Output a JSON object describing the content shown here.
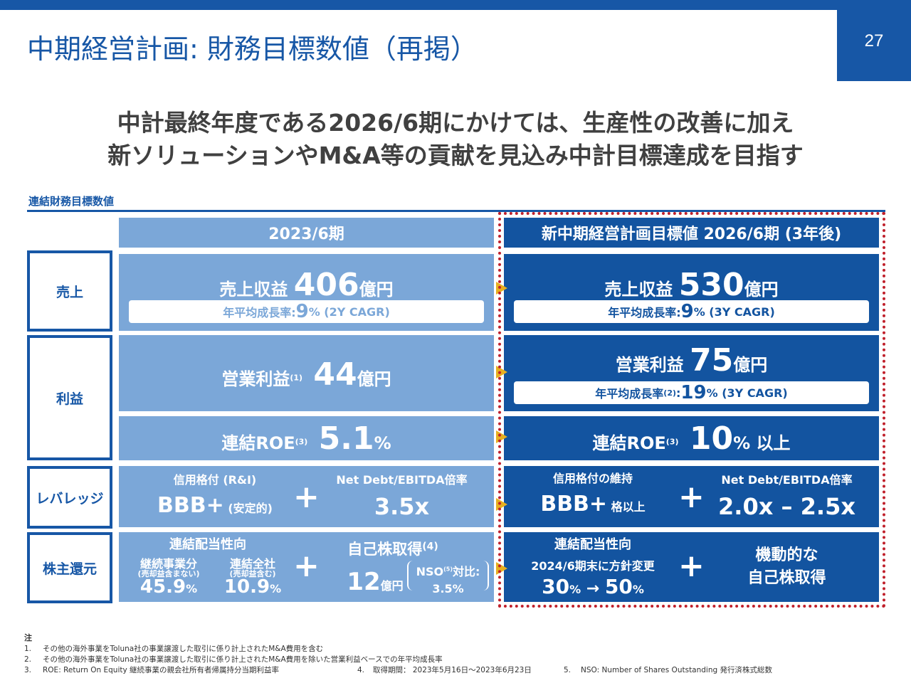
{
  "page": {
    "title": "中期経営計画: 財務目標数値（再掲）",
    "page_number": "27"
  },
  "headline": {
    "line1": "中計最終年度である2026/6期にかけては、生産性の改善に加え",
    "line2": "新ソリューションやM&A等の貢献を見込み中計目標達成を目指す"
  },
  "section_label": "連結財務目標数値",
  "columns": {
    "current": "2023/6期",
    "target": "新中期経営計画目標値 2026/6期 (3年後)"
  },
  "rows": {
    "sales": "売上",
    "profit": "利益",
    "leverage": "レバレッジ",
    "shareholder": "株主還元"
  },
  "current": {
    "sales_label": "売上収益 ",
    "sales_value": "406",
    "sales_unit": "億円",
    "sales_cagr_label": "年平均成長率: ",
    "sales_cagr_value": "9",
    "sales_cagr_unit": "% (2Y CAGR)",
    "op_label": "営業利益",
    "op_note": "(1)",
    "op_value": " 44",
    "op_unit": "億円",
    "roe_label": "連結ROE",
    "roe_note": "(3)",
    "roe_value": " 5.1",
    "roe_unit": "%",
    "rating_label": "信用格付 (R&I)",
    "rating_value": "BBB+",
    "rating_sub": " (安定的)",
    "nd_label": "Net Debt/EBITDA倍率",
    "nd_value": "3.5x",
    "payout_label": "連結配当性向",
    "cont_label": "継続事業分",
    "cont_sub": "(売却益含まない)",
    "cont_value": "45.9",
    "cont_unit": "%",
    "total_label": "連結全社",
    "total_sub": "(売却益含む)",
    "total_value": "10.9",
    "total_unit": "%",
    "buyback_label": "自己株取得",
    "buyback_note": "(4)",
    "buyback_value": "12",
    "buyback_unit": "億円",
    "nso_label": "NSO",
    "nso_note": "(5)",
    "nso_suffix": "対比:",
    "nso_value": "3.5%"
  },
  "target": {
    "sales_label": "売上収益 ",
    "sales_value": "530",
    "sales_unit": "億円",
    "sales_cagr_label": "年平均成長率: ",
    "sales_cagr_value": "9",
    "sales_cagr_unit": "% (3Y CAGR)",
    "op_label": "営業利益 ",
    "op_value": "75",
    "op_unit": "億円",
    "op_cagr_label": "年平均成長率",
    "op_cagr_note": "(2)",
    "op_cagr_sep": " : ",
    "op_cagr_value": "19",
    "op_cagr_unit": "% (3Y CAGR)",
    "roe_label": "連結ROE",
    "roe_note": "(3)",
    "roe_value": " 10",
    "roe_unit": "% 以上",
    "rating_label": "信用格付の維持",
    "rating_value": "BBB+",
    "rating_sub": " 格以上",
    "nd_label": "Net Debt/EBITDA倍率",
    "nd_value": "2.0x – 2.5x",
    "payout_label": "連結配当性向",
    "payout_sub": "2024/6期末に方針変更",
    "payout_from": "30",
    "payout_from_unit": "%",
    "payout_arrow": " → ",
    "payout_to": "50",
    "payout_to_unit": "%",
    "buyback_line1": "機動的な",
    "buyback_line2": "自己株取得"
  },
  "plus_sign": "+",
  "notes": {
    "heading": "注",
    "n1_num": "1.",
    "n1": "その他の海外事業をToluna社の事業譲渡した取引に係り計上されたM&A費用を含む",
    "n2_num": "2.",
    "n2": "その他の海外事業をToluna社の事業譲渡した取引に係り計上されたM&A費用を除いた営業利益ベースでの年平均成長率",
    "n3_num": "3.",
    "n3": "ROE: Return On Equity 継続事業の親会社所有者帰属持分当期利益率",
    "n4_num": "4.",
    "n4": "取得期間： 2023年5月16日～2023年6月23日",
    "n5_num": "5.",
    "n5": "NSO: Number of Shares Outstanding 発行済株式総数"
  },
  "colors": {
    "brand_blue": "#1757a6",
    "light_blue": "#7ba7d8",
    "dark_blue": "#1354a0",
    "frame_red": "#c0202b",
    "arrow_yellow": "#e8b020"
  }
}
